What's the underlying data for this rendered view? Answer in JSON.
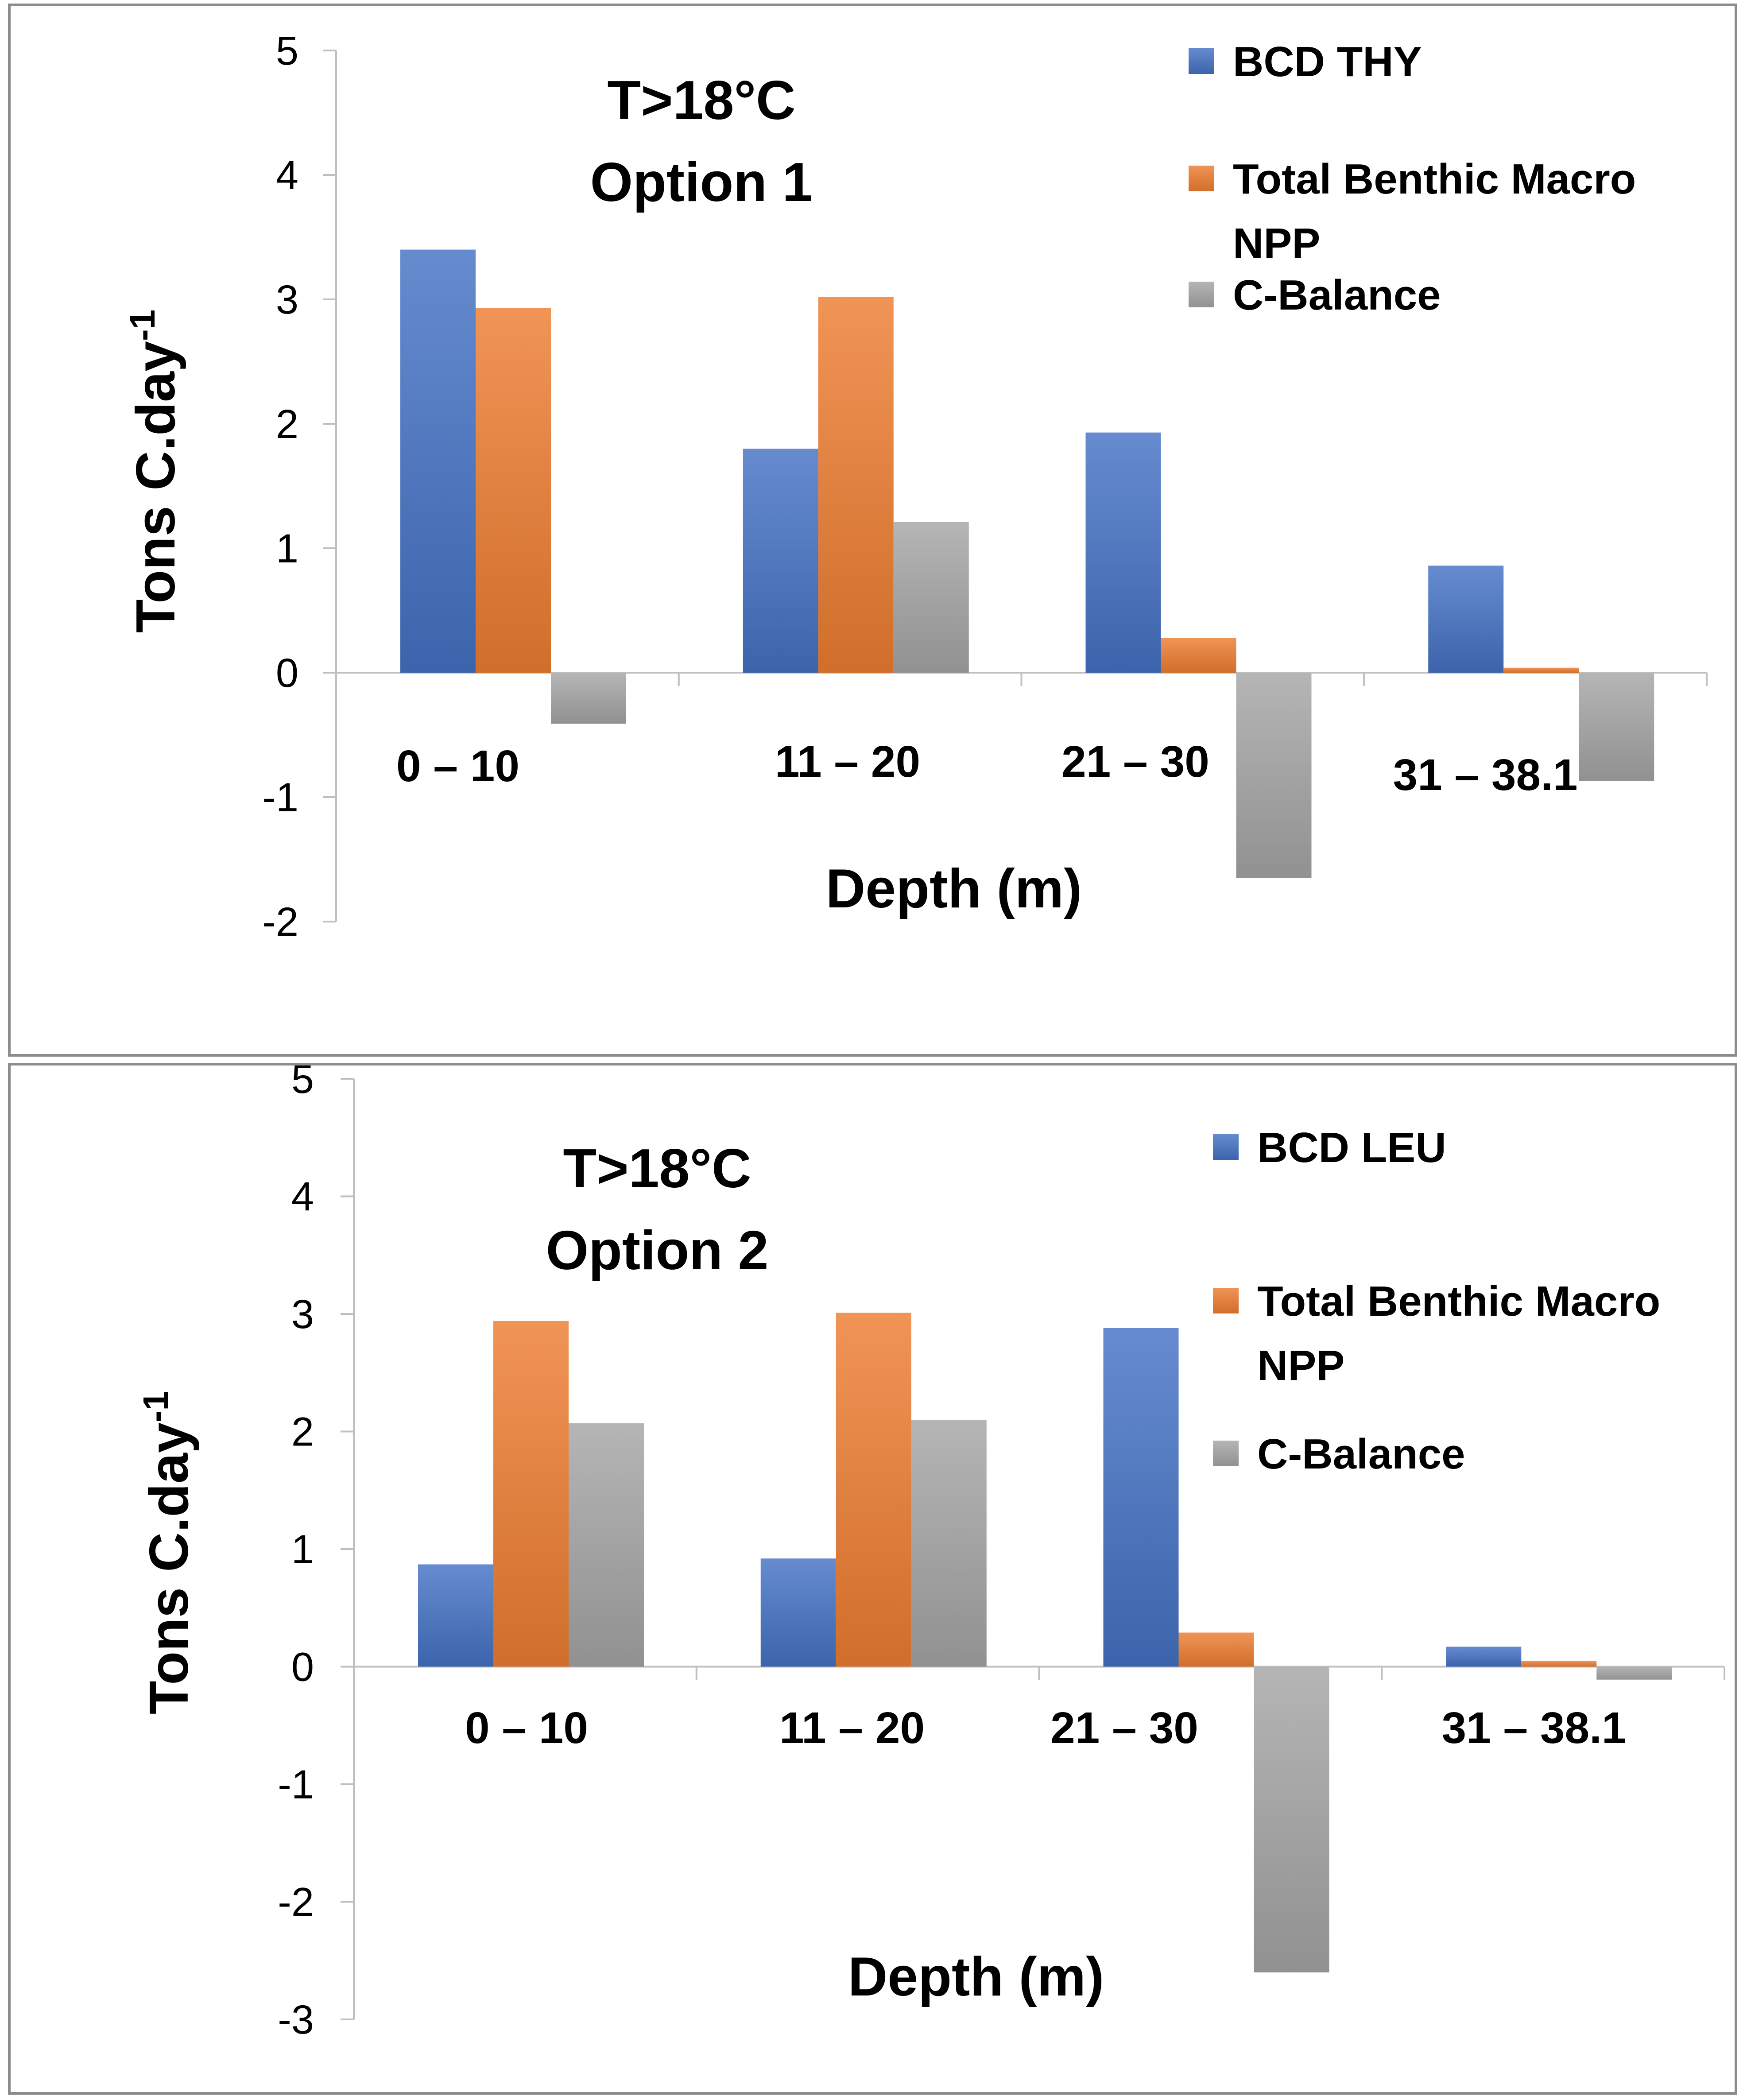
{
  "chart_data": [
    {
      "type": "bar",
      "title": "T>18°C",
      "subtitle": "Option 1",
      "xlabel": "Depth (m)",
      "ylabel": "Tons C.day",
      "ylabel_sup": "-1",
      "ylim": [
        -2,
        5
      ],
      "yticks": [
        "5",
        "4",
        "3",
        "2",
        "1",
        "0",
        "-1",
        "-2"
      ],
      "categories": [
        "0 – 10",
        "11 – 20",
        "21 – 30",
        "31 – 38.1"
      ],
      "legend_position": "top-right",
      "series": [
        {
          "name": "BCD THY",
          "legend_lines": [
            "BCD THY"
          ],
          "values": [
            3.4,
            1.8,
            1.93,
            0.86
          ]
        },
        {
          "name": "Total Benthic Macro NPP",
          "legend_lines": [
            "Total Benthic Macro",
            "NPP"
          ],
          "values": [
            2.93,
            3.02,
            0.28,
            0.04
          ]
        },
        {
          "name": "C-Balance",
          "legend_lines": [
            "C-Balance"
          ],
          "values": [
            -0.41,
            1.21,
            -1.65,
            -0.87
          ]
        }
      ],
      "colors": {
        "series_0": "#4472c4",
        "series_1": "#ed7d31",
        "series_2": "#a5a5a5"
      }
    },
    {
      "type": "bar",
      "title": "T>18°C",
      "subtitle": "Option 2",
      "xlabel": "Depth (m)",
      "ylabel": "Tons C.day",
      "ylabel_sup": "-1",
      "ylim": [
        -3,
        5
      ],
      "yticks": [
        "5",
        "4",
        "3",
        "2",
        "1",
        "0",
        "-1",
        "-2",
        "-3"
      ],
      "categories": [
        "0 – 10",
        "11 – 20",
        "21 – 30",
        "31 – 38.1"
      ],
      "legend_position": "top-right",
      "series": [
        {
          "name": "BCD LEU",
          "legend_lines": [
            "BCD LEU"
          ],
          "values": [
            0.87,
            0.92,
            2.88,
            0.17
          ]
        },
        {
          "name": "Total Benthic Macro NPP",
          "legend_lines": [
            "Total Benthic Macro",
            "NPP"
          ],
          "values": [
            2.94,
            3.01,
            0.29,
            0.05
          ]
        },
        {
          "name": "C-Balance",
          "legend_lines": [
            "C-Balance"
          ],
          "values": [
            2.07,
            2.1,
            -2.6,
            -0.11
          ]
        }
      ],
      "colors": {
        "series_0": "#4472c4",
        "series_1": "#ed7d31",
        "series_2": "#a5a5a5"
      }
    }
  ]
}
